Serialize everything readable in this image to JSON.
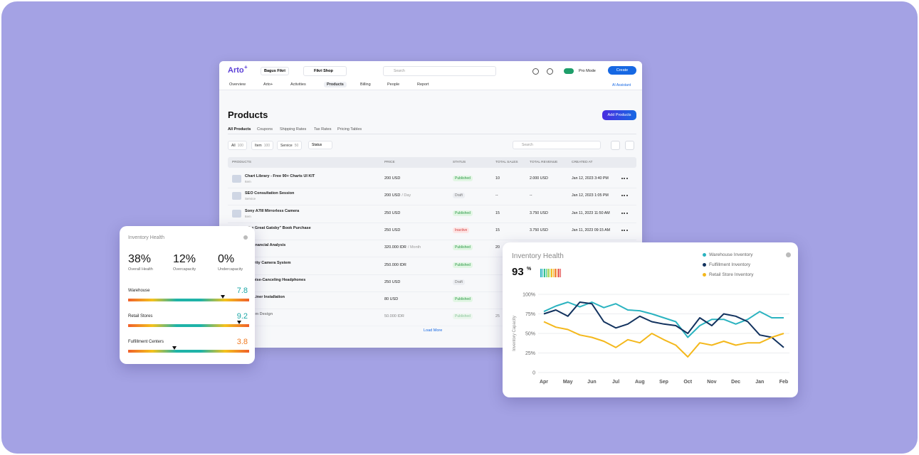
{
  "app": {
    "logo": "Arto",
    "logo_mark": "+",
    "user": "Bagus Fikri",
    "shop": "Fikri Shop",
    "search": "Search",
    "mode": "Pro Mode",
    "create": "Create",
    "nav": [
      "Overview",
      "Arto+",
      "Activities",
      "Products",
      "Billing",
      "People",
      "Report"
    ],
    "assistant": "AI Assistant"
  },
  "page": {
    "title": "Products",
    "add": "Add Products",
    "tabs": [
      "All Products",
      "Coupons",
      "Shipping Rates",
      "Tax Rates",
      "Pricing Tables"
    ],
    "filters": [
      {
        "label": "All",
        "count": "100"
      },
      {
        "label": "Item",
        "count": "100"
      },
      {
        "label": "Service",
        "count": "50"
      }
    ],
    "status_filter": "Status",
    "search": "Search",
    "load_more": "Load More"
  },
  "table": {
    "headers": [
      "PRODUCTS",
      "PRICE",
      "STATUS",
      "TOTAL SALES",
      "TOTAL REVENUE",
      "CREATED AT"
    ],
    "rows": [
      {
        "name": "Chart Library - Free 90+ Charts UI KIT",
        "type": "Item",
        "price": "200 USD",
        "unit": "",
        "status": "Published",
        "sales": "10",
        "revenue": "2.000 USD",
        "created": "Jan 12, 2023 3:40 PM"
      },
      {
        "name": "SEO Consultation Session",
        "type": "Service",
        "price": "200 USD",
        "unit": "/ Day",
        "status": "Draft",
        "sales": "--",
        "revenue": "--",
        "created": "Jan 12, 2023 1:05 PM"
      },
      {
        "name": "Sony A7III Mirrorless Camera",
        "type": "Item",
        "price": "250 USD",
        "unit": "",
        "status": "Published",
        "sales": "15",
        "revenue": "3.750 USD",
        "created": "Jan 11, 2023 11:50 AM"
      },
      {
        "name": "\"The Great Gatsby\" Book Purchase",
        "type": "",
        "price": "250 USD",
        "unit": "",
        "status": "Inactive",
        "sales": "15",
        "revenue": "3.750 USD",
        "created": "Jan 11, 2023 09:15 AM"
      },
      {
        "name": "nal Financial Analysis",
        "type": "",
        "price": "320.000 IDR",
        "unit": "/ Month",
        "status": "Published",
        "sales": "20",
        "revenue": "",
        "created": ""
      },
      {
        "name": "Security Camera System",
        "type": "",
        "price": "250.000 IDR",
        "unit": "",
        "status": "Published",
        "sales": "",
        "revenue": "",
        "created": ""
      },
      {
        "name": "ss Noise-Canceling Headphones",
        "type": "",
        "price": "250 USD",
        "unit": "",
        "status": "Draft",
        "sales": "",
        "revenue": "",
        "created": ""
      },
      {
        "name": "Bed Liner Installation",
        "type": "",
        "price": "80 USD",
        "unit": "",
        "status": "Published",
        "sales": "",
        "revenue": "",
        "created": ""
      },
      {
        "name": "r Room Design",
        "type": "",
        "price": "50.000 IDR",
        "unit": "",
        "status": "Published",
        "sales": "25",
        "revenue": "",
        "created": ""
      }
    ]
  },
  "health_card": {
    "title": "Inventory Health",
    "metrics": [
      {
        "value": "38%",
        "label": "Overall Health"
      },
      {
        "value": "12%",
        "label": "Overcapacity"
      },
      {
        "value": "0%",
        "label": "Undercapacity"
      }
    ],
    "gauges": [
      {
        "name": "Warehouse",
        "value": 7.8,
        "color": "#1aa6a6"
      },
      {
        "name": "Retail Stores",
        "value": 9.2,
        "color": "#1aa6a6"
      },
      {
        "name": "Fulfillment Centers",
        "value": 3.8,
        "color": "#f07a22"
      }
    ],
    "gauge_max": 10
  },
  "chart_data": {
    "type": "line",
    "title": "Inventory Health",
    "kpi": "93",
    "kpi_unit": "%",
    "y_label": "Inventory Capacity",
    "categories": [
      "Apr",
      null,
      "May",
      null,
      "Jun",
      null,
      "Jul",
      null,
      "Aug",
      null,
      "Sep",
      null,
      "Oct",
      null,
      "Nov",
      null,
      "Dec",
      null,
      "Jan",
      null,
      "Feb"
    ],
    "series": [
      {
        "name": "Warehouse Inventory",
        "color": "#2bb3c0",
        "values": [
          78,
          85,
          90,
          84,
          90,
          83,
          88,
          80,
          79,
          75,
          70,
          65,
          45,
          60,
          68,
          68,
          62,
          68,
          78,
          70,
          70
        ]
      },
      {
        "name": "Fulfillment Inventory",
        "color": "#12325e",
        "values": [
          75,
          80,
          72,
          90,
          88,
          65,
          57,
          62,
          72,
          65,
          62,
          60,
          50,
          70,
          60,
          75,
          72,
          65,
          48,
          45,
          32
        ]
      },
      {
        "name": "Retail Store Inventory",
        "color": "#f4b81c",
        "values": [
          65,
          58,
          55,
          48,
          45,
          40,
          32,
          42,
          38,
          50,
          42,
          35,
          20,
          38,
          35,
          40,
          35,
          38,
          38,
          45,
          50
        ]
      }
    ],
    "ylim": [
      0,
      100
    ],
    "yticks": [
      0,
      {
        "value": 25,
        "label": "25%"
      },
      {
        "value": 50,
        "label": "50%"
      },
      {
        "value": 75,
        "label": "75%"
      },
      {
        "value": 100,
        "label": "100%"
      }
    ],
    "grid": true
  }
}
